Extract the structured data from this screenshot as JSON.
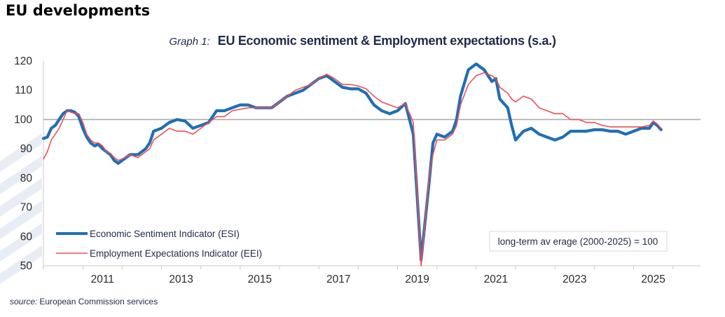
{
  "page": {
    "heading": "EU developments",
    "source_label": "source:",
    "source_text": "European Commission services"
  },
  "colors": {
    "esi": "#1f6fb5",
    "eei": "#ef4f55",
    "overlap": "#7a2f6f",
    "reference_line": "#aaaaaa",
    "axis": "#c8c8c8"
  },
  "chart_data": {
    "type": "line",
    "title_prefix": "Graph 1:",
    "title": "EU Economic sentiment & Employment expectations (s.a.)",
    "xlabel": "",
    "ylabel": "",
    "ylim": [
      50,
      120
    ],
    "yticks": [
      50,
      60,
      70,
      80,
      90,
      100,
      110,
      120
    ],
    "xlim": [
      2010.0,
      2026.7
    ],
    "xticks": [
      2011,
      2013,
      2015,
      2017,
      2019,
      2021,
      2023,
      2025
    ],
    "xtick_labels": [
      "2011",
      "2013",
      "2015",
      "2017",
      "2019",
      "2021",
      "2023",
      "2025"
    ],
    "grid": false,
    "reference_line": 100,
    "annotation": "long-term av erage (2000-2025) = 100",
    "series": [
      {
        "name": "Economic Sentiment Indicator (ESI)",
        "x": [
          2010.0,
          2010.1,
          2010.2,
          2010.3,
          2010.4,
          2010.5,
          2010.6,
          2010.7,
          2010.8,
          2010.9,
          2011.0,
          2011.1,
          2011.2,
          2011.3,
          2011.4,
          2011.5,
          2011.6,
          2011.7,
          2011.8,
          2011.9,
          2012.0,
          2012.2,
          2012.4,
          2012.6,
          2012.7,
          2012.8,
          2013.0,
          2013.2,
          2013.4,
          2013.6,
          2013.8,
          2014.0,
          2014.2,
          2014.4,
          2014.6,
          2014.8,
          2015.0,
          2015.2,
          2015.4,
          2015.6,
          2015.8,
          2016.0,
          2016.2,
          2016.4,
          2016.6,
          2016.8,
          2017.0,
          2017.2,
          2017.4,
          2017.6,
          2017.8,
          2018.0,
          2018.2,
          2018.4,
          2018.6,
          2018.8,
          2019.0,
          2019.2,
          2019.4,
          2019.6,
          2019.8,
          2019.9,
          2020.0,
          2020.2,
          2020.4,
          2020.5,
          2020.6,
          2020.8,
          2021.0,
          2021.2,
          2021.4,
          2021.5,
          2021.6,
          2021.8,
          2021.9,
          2022.0,
          2022.2,
          2022.4,
          2022.6,
          2022.8,
          2023.0,
          2023.2,
          2023.4,
          2023.6,
          2023.8,
          2024.0,
          2024.2,
          2024.4,
          2024.6,
          2024.8,
          2025.0,
          2025.2,
          2025.4,
          2025.5,
          2025.6,
          2025.7
        ],
        "values": [
          93.5,
          94,
          97,
          98,
          100,
          102,
          103,
          103,
          102.5,
          101,
          97,
          94,
          92,
          91,
          91.5,
          90,
          89,
          88,
          86,
          85,
          86,
          88,
          88,
          90,
          92,
          96,
          97,
          99,
          100,
          99.5,
          97,
          98,
          99,
          103,
          103,
          104,
          105,
          105,
          104,
          104,
          104,
          106,
          108,
          109,
          110,
          112,
          114,
          115,
          113,
          111,
          110.5,
          110.5,
          109,
          105,
          103,
          102,
          103,
          105.5,
          95,
          52,
          78,
          92,
          95,
          94,
          96,
          100,
          108,
          117,
          119,
          117,
          113,
          114,
          107,
          104,
          98,
          93,
          96,
          97,
          95,
          94,
          93,
          94,
          96,
          96,
          96,
          96.5,
          96.5,
          96,
          96,
          95,
          96,
          97,
          97,
          99,
          98,
          96.5
        ]
      },
      {
        "name": "Employment Expectations Indicator (EEI)",
        "x": [
          2010.0,
          2010.1,
          2010.2,
          2010.3,
          2010.4,
          2010.5,
          2010.6,
          2010.7,
          2010.8,
          2010.9,
          2011.0,
          2011.1,
          2011.2,
          2011.3,
          2011.4,
          2011.5,
          2011.6,
          2011.7,
          2011.8,
          2011.9,
          2012.0,
          2012.2,
          2012.4,
          2012.6,
          2012.7,
          2012.8,
          2013.0,
          2013.2,
          2013.4,
          2013.6,
          2013.8,
          2014.0,
          2014.2,
          2014.4,
          2014.6,
          2014.8,
          2015.0,
          2015.2,
          2015.4,
          2015.6,
          2015.8,
          2016.0,
          2016.2,
          2016.4,
          2016.6,
          2016.8,
          2017.0,
          2017.2,
          2017.4,
          2017.6,
          2017.8,
          2018.0,
          2018.2,
          2018.4,
          2018.6,
          2018.8,
          2019.0,
          2019.2,
          2019.4,
          2019.6,
          2019.8,
          2019.9,
          2020.0,
          2020.2,
          2020.4,
          2020.5,
          2020.6,
          2020.8,
          2021.0,
          2021.2,
          2021.4,
          2021.5,
          2021.6,
          2021.8,
          2021.9,
          2022.0,
          2022.2,
          2022.4,
          2022.6,
          2022.8,
          2023.0,
          2023.2,
          2023.4,
          2023.6,
          2023.8,
          2024.0,
          2024.2,
          2024.4,
          2024.6,
          2024.8,
          2025.0,
          2025.2,
          2025.4,
          2025.5,
          2025.6,
          2025.7
        ],
        "values": [
          86.5,
          89,
          93,
          95,
          97,
          100,
          103,
          102.5,
          102,
          102,
          99,
          95,
          93,
          92,
          92,
          91,
          89,
          88.5,
          87,
          86,
          86.5,
          88,
          87,
          89,
          90,
          93,
          95,
          97,
          96,
          96,
          95,
          97,
          99,
          101,
          101,
          103,
          103.5,
          104,
          104,
          104,
          104,
          106,
          108,
          110,
          111,
          112,
          114,
          115.5,
          114,
          112,
          112,
          111.5,
          110.5,
          108,
          106,
          105,
          104,
          105.5,
          99,
          50,
          80,
          88,
          93,
          93,
          95,
          98,
          105,
          112,
          115,
          116,
          115,
          114,
          111,
          109,
          107,
          106,
          108,
          107,
          104,
          103,
          102,
          102,
          100,
          100,
          99,
          99,
          98,
          97.5,
          97.5,
          97.5,
          97.5,
          97.5,
          98,
          99.5,
          98.5,
          97
        ]
      }
    ]
  }
}
